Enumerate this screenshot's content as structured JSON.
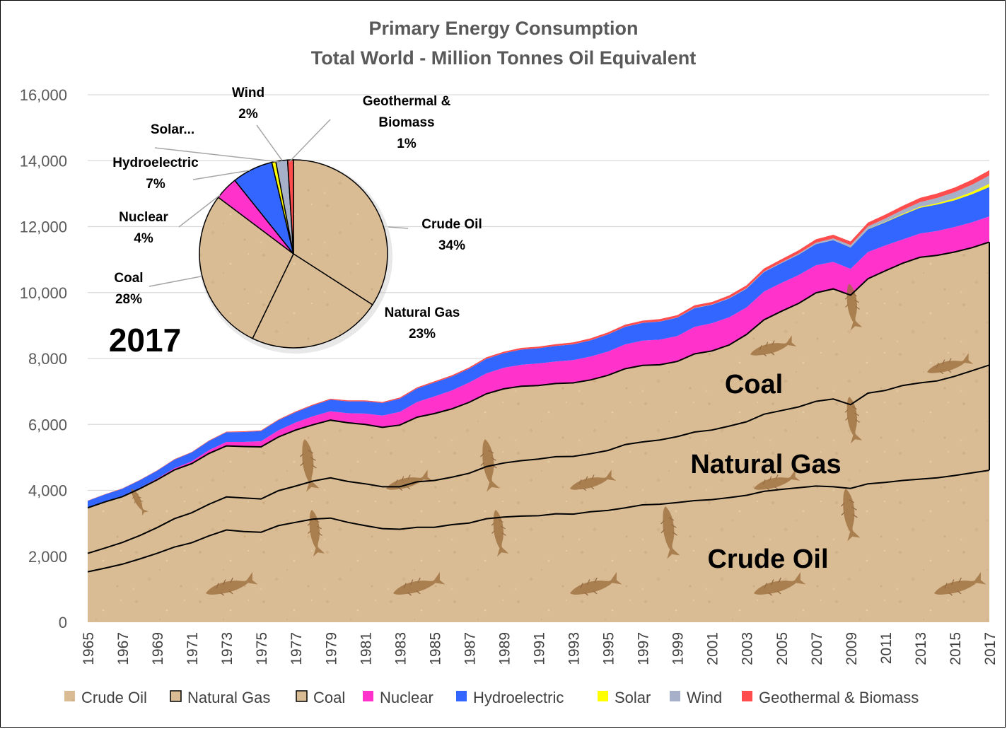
{
  "chart_data": [
    {
      "type": "area",
      "title": "Primary Energy Consumption",
      "subtitle": "Total World - Million Tonnes Oil Equivalent",
      "xlabel": "",
      "ylabel": "",
      "ylim": [
        0,
        16000
      ],
      "yticks": [
        "0",
        "2,000",
        "4,000",
        "6,000",
        "8,000",
        "10,000",
        "12,000",
        "14,000",
        "16,000"
      ],
      "grid": true,
      "stacked": true,
      "legend_position": "bottom",
      "x": [
        1965,
        1966,
        1967,
        1968,
        1969,
        1970,
        1971,
        1972,
        1973,
        1974,
        1975,
        1976,
        1977,
        1978,
        1979,
        1980,
        1981,
        1982,
        1983,
        1984,
        1985,
        1986,
        1987,
        1988,
        1989,
        1990,
        1991,
        1992,
        1993,
        1994,
        1995,
        1996,
        1997,
        1998,
        1999,
        2000,
        2001,
        2002,
        2003,
        2004,
        2005,
        2006,
        2007,
        2008,
        2009,
        2010,
        2011,
        2012,
        2013,
        2014,
        2015,
        2016,
        2017
      ],
      "xticks": [
        "1965",
        "1967",
        "1969",
        "1971",
        "1973",
        "1975",
        "1977",
        "1979",
        "1981",
        "1983",
        "1985",
        "1987",
        "1989",
        "1991",
        "1993",
        "1995",
        "1997",
        "1999",
        "2001",
        "2003",
        "2005",
        "2007",
        "2009",
        "2011",
        "2013",
        "2015",
        "2017"
      ],
      "series": [
        {
          "name": "Crude Oil",
          "values": [
            1530,
            1640,
            1760,
            1920,
            2090,
            2280,
            2410,
            2620,
            2800,
            2750,
            2730,
            2930,
            3030,
            3130,
            3160,
            3030,
            2930,
            2840,
            2820,
            2880,
            2880,
            2960,
            3010,
            3140,
            3190,
            3220,
            3230,
            3290,
            3280,
            3350,
            3390,
            3470,
            3560,
            3580,
            3630,
            3690,
            3720,
            3780,
            3850,
            3970,
            4030,
            4080,
            4130,
            4110,
            4060,
            4200,
            4240,
            4300,
            4340,
            4380,
            4450,
            4530,
            4610
          ]
        },
        {
          "name": "Natural Gas",
          "values": [
            560,
            610,
            660,
            710,
            780,
            860,
            910,
            960,
            1000,
            1020,
            1010,
            1060,
            1100,
            1150,
            1220,
            1240,
            1270,
            1270,
            1290,
            1380,
            1420,
            1440,
            1510,
            1580,
            1640,
            1680,
            1720,
            1730,
            1750,
            1760,
            1820,
            1920,
            1910,
            1950,
            2000,
            2080,
            2110,
            2170,
            2230,
            2340,
            2390,
            2450,
            2570,
            2660,
            2540,
            2750,
            2790,
            2880,
            2920,
            2940,
            3010,
            3100,
            3190
          ]
        },
        {
          "name": "Coal",
          "values": [
            1380,
            1400,
            1390,
            1420,
            1450,
            1480,
            1490,
            1540,
            1550,
            1560,
            1580,
            1630,
            1700,
            1710,
            1750,
            1780,
            1800,
            1800,
            1870,
            1960,
            2030,
            2070,
            2150,
            2210,
            2250,
            2260,
            2230,
            2220,
            2230,
            2240,
            2280,
            2300,
            2320,
            2280,
            2280,
            2370,
            2400,
            2460,
            2650,
            2860,
            3010,
            3140,
            3290,
            3340,
            3320,
            3470,
            3630,
            3710,
            3810,
            3810,
            3770,
            3730,
            3730
          ]
        },
        {
          "name": "Nuclear",
          "values": [
            10,
            15,
            20,
            25,
            35,
            50,
            70,
            100,
            120,
            140,
            170,
            200,
            230,
            260,
            270,
            290,
            330,
            360,
            400,
            460,
            520,
            560,
            600,
            620,
            640,
            650,
            670,
            670,
            690,
            710,
            720,
            740,
            750,
            760,
            770,
            820,
            840,
            840,
            820,
            860,
            860,
            860,
            840,
            820,
            800,
            810,
            770,
            720,
            720,
            740,
            760,
            770,
            780
          ]
        },
        {
          "name": "Hydroelectric",
          "values": [
            200,
            210,
            220,
            230,
            240,
            260,
            270,
            280,
            290,
            300,
            310,
            310,
            310,
            330,
            350,
            360,
            370,
            380,
            400,
            410,
            420,
            420,
            420,
            440,
            440,
            460,
            460,
            470,
            480,
            490,
            520,
            530,
            540,
            550,
            560,
            570,
            560,
            570,
            570,
            590,
            600,
            620,
            640,
            660,
            650,
            690,
            700,
            750,
            780,
            800,
            810,
            850,
            890
          ]
        },
        {
          "name": "Solar",
          "values": [
            0,
            0,
            0,
            0,
            0,
            0,
            0,
            0,
            0,
            0,
            0,
            0,
            0,
            0,
            0,
            0,
            0,
            0,
            0,
            0,
            0,
            0,
            0,
            0,
            0,
            0,
            0,
            0,
            0,
            0,
            0,
            0,
            0,
            0,
            0,
            1,
            1,
            1,
            1,
            1,
            1,
            2,
            2,
            3,
            5,
            7,
            15,
            25,
            30,
            40,
            55,
            70,
            100
          ]
        },
        {
          "name": "Wind",
          "values": [
            0,
            0,
            0,
            0,
            0,
            0,
            0,
            0,
            0,
            0,
            0,
            0,
            0,
            0,
            0,
            0,
            0,
            0,
            0,
            0,
            0,
            0,
            0,
            1,
            1,
            1,
            1,
            1,
            1,
            2,
            2,
            3,
            3,
            4,
            5,
            7,
            8,
            12,
            14,
            18,
            23,
            30,
            40,
            50,
            65,
            80,
            100,
            120,
            140,
            160,
            190,
            220,
            250
          ]
        },
        {
          "name": "Geothermal & Biomass",
          "values": [
            10,
            10,
            10,
            10,
            10,
            15,
            15,
            15,
            20,
            20,
            20,
            20,
            25,
            25,
            30,
            30,
            30,
            30,
            35,
            35,
            40,
            40,
            40,
            45,
            45,
            50,
            50,
            55,
            55,
            60,
            60,
            65,
            65,
            70,
            70,
            75,
            75,
            80,
            85,
            90,
            95,
            100,
            105,
            110,
            110,
            115,
            120,
            125,
            130,
            135,
            140,
            150,
            160
          ]
        }
      ],
      "annotations": [
        "Coal",
        "Natural Gas",
        "Crude Oil"
      ],
      "fill_note_color": "#d8b890"
    },
    {
      "type": "pie",
      "year_label": "2017",
      "slices": [
        {
          "name": "Crude Oil",
          "value": 34,
          "label": "34%"
        },
        {
          "name": "Natural Gas",
          "value": 23,
          "label": "23%"
        },
        {
          "name": "Coal",
          "value": 28,
          "label": "28%"
        },
        {
          "name": "Nuclear",
          "value": 4,
          "label": "4%"
        },
        {
          "name": "Hydroelectric",
          "value": 7,
          "label": "7%"
        },
        {
          "name": "Solar",
          "value": 0.7,
          "label": "Solar..."
        },
        {
          "name": "Wind",
          "value": 2,
          "label": "2%"
        },
        {
          "name": "Geothermal & Biomass",
          "value": 1,
          "label": "1%"
        }
      ]
    }
  ],
  "legend": [
    {
      "name": "Crude Oil",
      "color": "#dcbf98"
    },
    {
      "name": "Natural Gas",
      "color": "#dcbf98"
    },
    {
      "name": "Coal",
      "color": "#dcbf98"
    },
    {
      "name": "Nuclear",
      "color": "#ff33cc"
    },
    {
      "name": "Hydroelectric",
      "color": "#3366ff"
    },
    {
      "name": "Solar",
      "color": "#ffff00"
    },
    {
      "name": "Wind",
      "color": "#a6b0c8"
    },
    {
      "name": "Geothermal & Biomass",
      "color": "#ff4d4d"
    }
  ],
  "colors": {
    "sandstone": "#d8bb92",
    "sandstone_dark": "#c8a678",
    "fossil": "#a4703c",
    "nuclear": "#ff33cc",
    "hydro": "#3366ff",
    "solar": "#ffff00",
    "wind": "#a6b0c8",
    "geothermal": "#ff4d4d",
    "grid": "#d9d9d9",
    "text": "#595959"
  }
}
